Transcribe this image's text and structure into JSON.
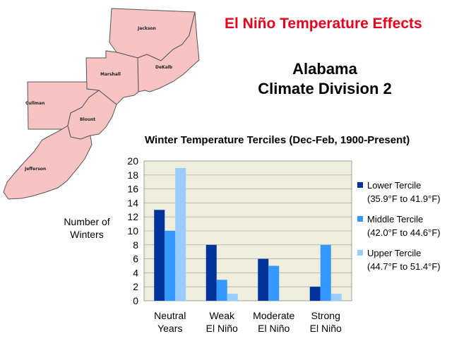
{
  "title": "El Niño Temperature Effects",
  "region": {
    "line1": "Alabama",
    "line2": "Climate Division 2"
  },
  "map_labels": [
    "Jackson",
    "Marshall",
    "DeKalb",
    "Cullman",
    "Blount",
    "Jefferson"
  ],
  "chart_data": {
    "type": "bar",
    "title": "Winter Temperature Terciles (Dec-Feb, 1900-Present)",
    "ylabel": "Number of Winters",
    "xlabel": "",
    "categories": [
      [
        "Neutral",
        "Years"
      ],
      [
        "Weak",
        "El Niño"
      ],
      [
        "Moderate",
        "El Niño"
      ],
      [
        "Strong",
        "El Niño"
      ]
    ],
    "ylim": [
      0,
      20
    ],
    "yticks": [
      0,
      2,
      4,
      6,
      8,
      10,
      12,
      14,
      16,
      18,
      20
    ],
    "grid": true,
    "legend_position": "right",
    "series": [
      {
        "name": "Lower Tercile",
        "range": "(35.9°F to 41.9°F)",
        "color": "#003399",
        "values": [
          13,
          8,
          6,
          2
        ]
      },
      {
        "name": "Middle Tercile",
        "range": "(42.0°F to 44.6°F)",
        "color": "#3399ff",
        "values": [
          10,
          3,
          5,
          8
        ]
      },
      {
        "name": "Upper Tercile",
        "range": "(44.7°F to 51.4°F)",
        "color": "#99ccff",
        "values": [
          19,
          1,
          0,
          1
        ]
      }
    ]
  }
}
